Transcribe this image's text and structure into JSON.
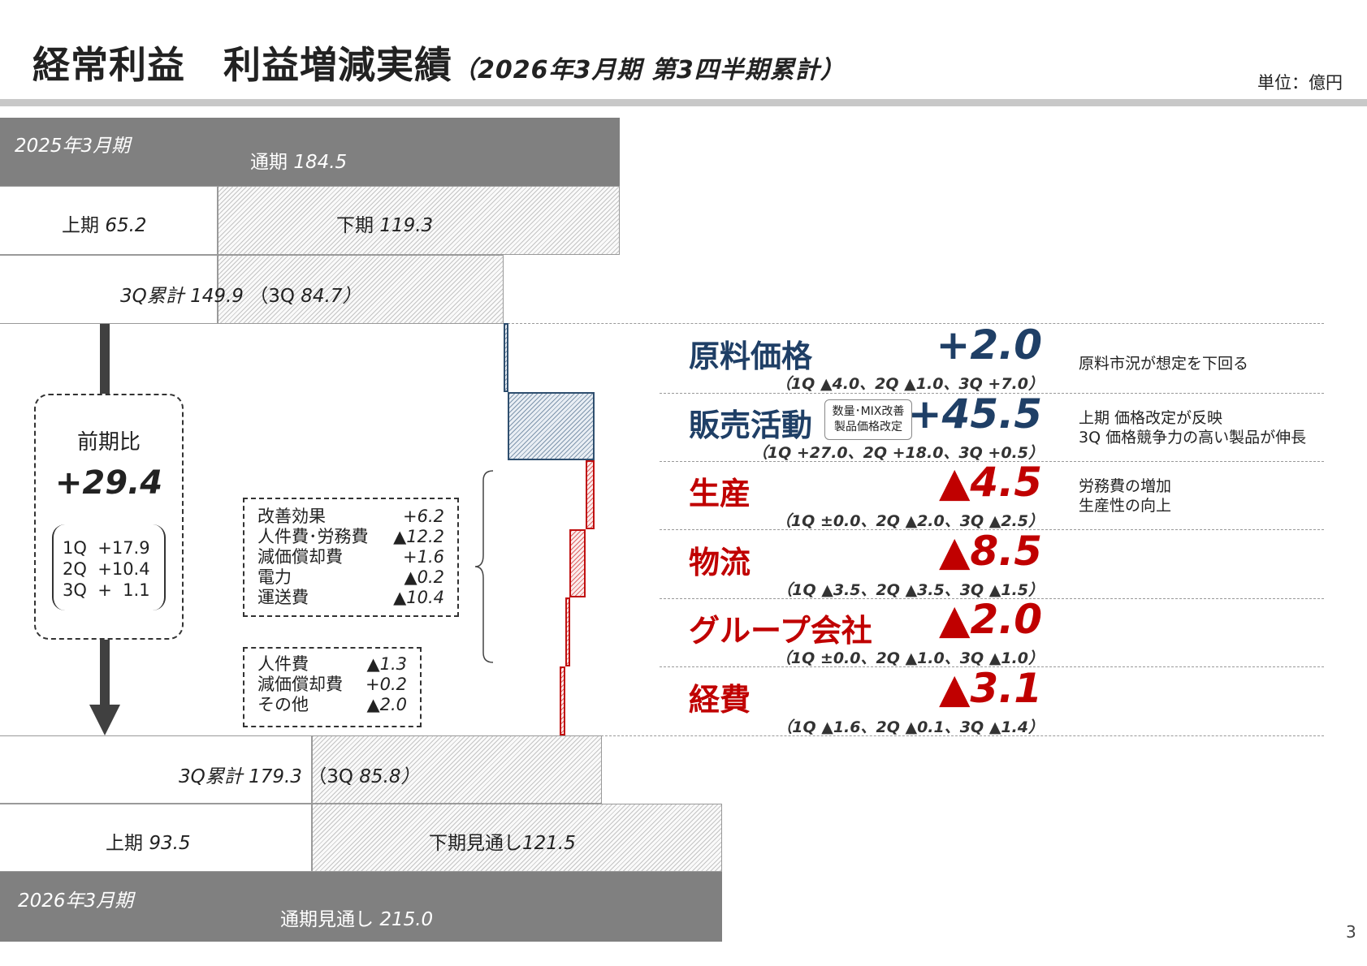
{
  "header": {
    "title": "経常利益　利益増減実績",
    "subtitle": "（2026年3月期 第3四半期累計）",
    "unit": "単位：億円",
    "page_number": "3"
  },
  "prev_year": {
    "label": "2025年3月期",
    "full_label": "通期",
    "full_value": "184.5",
    "h1_label": "上期",
    "h1_value": "65.2",
    "h2_label": "下期",
    "h2_value": "119.3",
    "q3_label": "3Q累計",
    "q3_value": "149.9",
    "q3_paren_label": "（3Q",
    "q3_paren_value": "84.7）"
  },
  "curr_year": {
    "label": "2026年3月期",
    "full_label": "通期見通し",
    "full_value": "215.0",
    "h1_label": "上期",
    "h1_value": "93.5",
    "h2_label": "下期見通し",
    "h2_value": "121.5",
    "q3_label": "3Q累計",
    "q3_value": "179.3",
    "q3_paren_label": "（3Q",
    "q3_paren_value": "85.8）"
  },
  "yoy": {
    "label": "前期比",
    "value": "+29.4",
    "quarters": [
      {
        "q": "1Q",
        "v": "+17.9"
      },
      {
        "q": "2Q",
        "v": "+10.4"
      },
      {
        "q": "3Q",
        "v": "+  1.1"
      }
    ]
  },
  "production_breakdown": [
    {
      "label": "改善効果",
      "value": "+6.2"
    },
    {
      "label": "人件費･労務費",
      "value": "▲12.2"
    },
    {
      "label": "減価償却費",
      "value": "+1.6"
    },
    {
      "label": "電力",
      "value": "▲0.2"
    },
    {
      "label": "運送費",
      "value": "▲10.4"
    }
  ],
  "expense_breakdown": [
    {
      "label": "人件費",
      "value": "▲1.3"
    },
    {
      "label": "減価償却費",
      "value": "+0.2"
    },
    {
      "label": "その他",
      "value": "▲2.0"
    }
  ],
  "sales_tag": [
    "数量･MIX改善",
    "製品価格改定"
  ],
  "colors": {
    "positive": "#1f3f66",
    "negative": "#c00000",
    "bar_gray": "#808080"
  },
  "chart_data": {
    "type": "waterfall",
    "start": {
      "label": "3Q累計",
      "value": 149.9
    },
    "end": {
      "label": "3Q累計",
      "value": 179.3
    },
    "steps": [
      {
        "name": "原料価格",
        "display": "+2.0",
        "value": 2.0,
        "quarters": "（1Q ▲4.0、2Q ▲1.0、3Q +7.0）",
        "note": [
          "原料市況が想定を下回る"
        ]
      },
      {
        "name": "販売活動",
        "display": "+45.5",
        "value": 45.5,
        "quarters": "（1Q +27.0、2Q +18.0、3Q +0.5）",
        "note": [
          "上期 価格改定が反映",
          "3Q 価格競争力の高い製品が伸長"
        ]
      },
      {
        "name": "生産",
        "display": "▲4.5",
        "value": -4.5,
        "quarters": "（1Q ±0.0、2Q ▲2.0、3Q ▲2.5）",
        "note": [
          "労務費の増加",
          "生産性の向上"
        ]
      },
      {
        "name": "物流",
        "display": "▲8.5",
        "value": -8.5,
        "quarters": "（1Q ▲3.5、2Q ▲3.5、3Q ▲1.5）",
        "note": []
      },
      {
        "name": "グループ会社",
        "display": "▲2.0",
        "value": -2.0,
        "quarters": "（1Q ±0.0、2Q ▲1.0、3Q ▲1.0）",
        "note": []
      },
      {
        "name": "経費",
        "display": "▲3.1",
        "value": -3.1,
        "quarters": "（1Q ▲1.6、2Q ▲0.1、3Q ▲1.4）",
        "note": []
      }
    ],
    "prev_full": 184.5,
    "prev_h1": 65.2,
    "prev_h2": 119.3,
    "curr_full": 215.0,
    "curr_h1": 93.5,
    "curr_h2": 121.5
  }
}
